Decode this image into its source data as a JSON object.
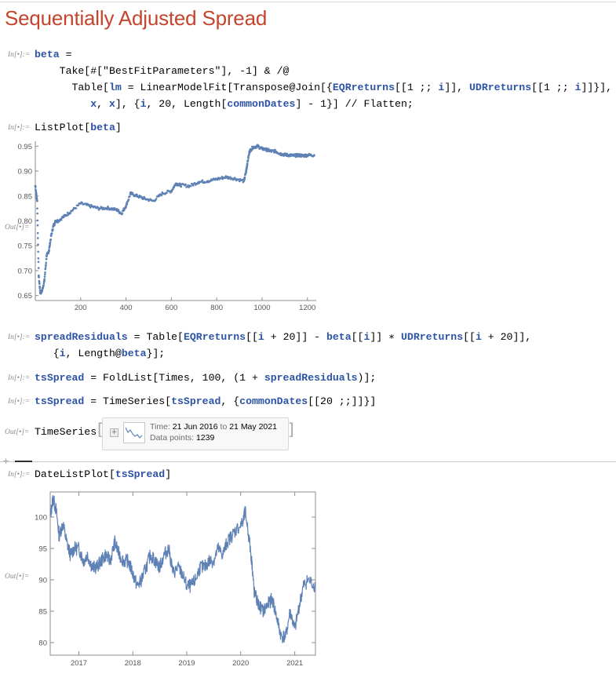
{
  "title": "Sequentially Adjusted Spread",
  "labels": {
    "in": "In[•]:=",
    "out": "Out[•]="
  },
  "cells": {
    "c1": {
      "l1": [
        "beta",
        " ="
      ],
      "l2": [
        "Take[#[\"BestFitParameters\"], -1] & /@"
      ],
      "l3a": "Table[",
      "l3b": "lm",
      "l3c": " = LinearModelFit[Transpose@Join[{",
      "l3d": "EQRreturns",
      "l3e": "[[1 ;; ",
      "l3f": "i",
      "l3g": "]], ",
      "l3h": "UDRreturns",
      "l3i": "[[1 ;; ",
      "l3j": "i",
      "l3k": "]]}],",
      "l4a": "x",
      "l4b": ", ",
      "l4c": "x",
      "l4d": "], {",
      "l4e": "i",
      "l4f": ", 20, Length[",
      "l4g": "commonDates",
      "l4h": "] - 1}] // Flatten;"
    },
    "c2": {
      "a": "ListPlot[",
      "b": "beta",
      "c": "]"
    },
    "c3": {
      "a": "spreadResiduals",
      "b": " = Table[",
      "c": "EQRreturns",
      "d": "[[",
      "e": "i",
      "f": " + 20]] - ",
      "g": "beta",
      "h": "[[",
      "i": "i",
      "j": "]] ∗ ",
      "k": "UDRreturns",
      "l": "[[",
      "m": "i",
      "n": " + 20]],",
      "o": "{",
      "p": "i",
      "q": ", Length@",
      "r": "beta",
      "s": "}];"
    },
    "c4": {
      "a": "tsSpread",
      "b": " = FoldList[Times, 100, (1 + ",
      "c": "spreadResiduals",
      "d": ")];"
    },
    "c5": {
      "a": "tsSpread",
      "b": " = TimeSeries[",
      "c": "tsSpread",
      "d": ", {",
      "e": "commonDates",
      "f": "[[20 ;;]]}]"
    },
    "c6": {
      "head": "TimeSeries",
      "time_label": "Time:",
      "time_value": "21 Jun 2016",
      "to": "to",
      "time_end": "21 May 2021",
      "points_label": "Data points:",
      "points_value": "1239"
    },
    "c7": {
      "a": "DateListPlot[",
      "b": "tsSpread",
      "c": "]"
    }
  },
  "chart_data": [
    {
      "type": "scatter",
      "title": "",
      "xlabel": "",
      "ylabel": "",
      "xlim": [
        0,
        1239
      ],
      "ylim": [
        0.64,
        0.96
      ],
      "x_ticks": [
        200,
        400,
        600,
        800,
        1000,
        1200
      ],
      "y_ticks": [
        0.65,
        0.7,
        0.75,
        0.8,
        0.85,
        0.9,
        0.95
      ],
      "color": "#5e81b5",
      "series": [
        {
          "x": [
            0,
            8,
            15,
            22,
            30,
            40,
            50,
            60,
            70,
            80,
            90,
            100,
            130,
            160,
            200,
            240,
            280,
            320,
            360,
            380,
            400,
            420,
            450,
            480,
            520,
            560,
            600,
            620,
            640,
            680,
            720,
            760,
            800,
            840,
            880,
            920,
            930,
            935,
            945,
            960,
            980,
            1000,
            1020,
            1040,
            1060,
            1080,
            1100,
            1120,
            1140,
            1160,
            1180,
            1200,
            1230
          ],
          "y": [
            0.87,
            0.84,
            0.69,
            0.655,
            0.66,
            0.68,
            0.73,
            0.74,
            0.77,
            0.79,
            0.8,
            0.8,
            0.81,
            0.82,
            0.835,
            0.83,
            0.825,
            0.826,
            0.822,
            0.815,
            0.83,
            0.855,
            0.85,
            0.845,
            0.84,
            0.855,
            0.86,
            0.875,
            0.872,
            0.87,
            0.878,
            0.88,
            0.884,
            0.888,
            0.885,
            0.88,
            0.9,
            0.915,
            0.94,
            0.948,
            0.95,
            0.945,
            0.943,
            0.94,
            0.94,
            0.935,
            0.933,
            0.932,
            0.931,
            0.932,
            0.931,
            0.932,
            0.932
          ]
        }
      ]
    },
    {
      "type": "line",
      "title": "",
      "xlabel": "",
      "ylabel": "",
      "xlim": [
        "2016-06-21",
        "2021-05-21"
      ],
      "ylim": [
        78,
        104
      ],
      "x_ticks": [
        "2017",
        "2018",
        "2019",
        "2020",
        "2021"
      ],
      "y_ticks": [
        80,
        85,
        90,
        95,
        100
      ],
      "color": "#5e81b5",
      "series": [
        {
          "x": [
            "2016-06-21",
            "2016-07-10",
            "2016-08-01",
            "2016-08-20",
            "2016-09-15",
            "2016-10-10",
            "2016-11-05",
            "2016-12-01",
            "2017-01-01",
            "2017-02-01",
            "2017-03-01",
            "2017-04-01",
            "2017-05-01",
            "2017-06-01",
            "2017-07-01",
            "2017-08-01",
            "2017-09-01",
            "2017-10-01",
            "2017-11-01",
            "2017-12-01",
            "2018-01-01",
            "2018-02-01",
            "2018-03-01",
            "2018-04-01",
            "2018-05-01",
            "2018-06-01",
            "2018-07-01",
            "2018-08-01",
            "2018-09-01",
            "2018-10-01",
            "2018-11-01",
            "2018-12-01",
            "2019-01-01",
            "2019-02-01",
            "2019-03-01",
            "2019-04-01",
            "2019-05-01",
            "2019-06-01",
            "2019-07-01",
            "2019-08-01",
            "2019-09-01",
            "2019-10-01",
            "2019-11-01",
            "2019-12-01",
            "2020-01-15",
            "2020-02-01",
            "2020-03-01",
            "2020-03-20",
            "2020-04-01",
            "2020-05-01",
            "2020-06-01",
            "2020-07-01",
            "2020-08-01",
            "2020-09-01",
            "2020-10-01",
            "2020-11-01",
            "2020-12-01",
            "2021-01-01",
            "2021-02-01",
            "2021-03-01",
            "2021-04-01",
            "2021-05-21"
          ],
          "y": [
            100,
            103,
            101,
            97,
            99,
            96,
            94,
            95,
            95,
            93,
            94,
            92,
            92,
            93,
            94,
            93,
            96,
            94,
            93,
            93,
            91,
            89,
            90,
            92,
            94,
            93,
            92,
            94,
            95,
            91,
            92,
            91,
            89,
            89,
            90,
            92,
            92,
            93,
            93,
            95,
            94,
            96,
            97,
            98,
            99,
            101,
            96,
            92,
            88,
            86,
            85,
            86,
            87,
            84,
            81,
            81,
            85,
            82,
            86,
            89,
            90,
            89
          ]
        }
      ]
    }
  ]
}
